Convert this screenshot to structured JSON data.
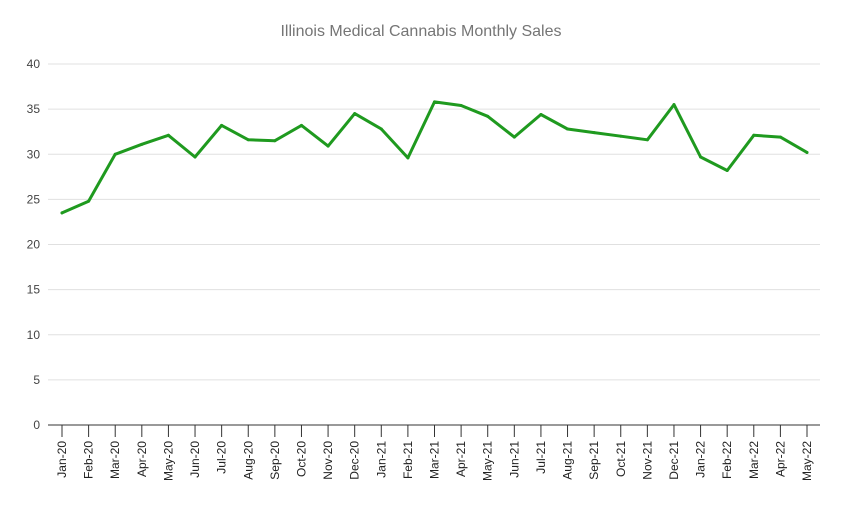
{
  "chart_data": {
    "type": "line",
    "title": "Illinois Medical Cannabis Monthly Sales",
    "xlabel": "",
    "ylabel": "",
    "ylim": [
      0,
      40
    ],
    "yticks": [
      "0",
      "5",
      "10",
      "15",
      "20",
      "25",
      "30",
      "35",
      "40"
    ],
    "grid": true,
    "legend": "none",
    "categories": [
      "Jan-20",
      "Feb-20",
      "Mar-20",
      "Apr-20",
      "May-20",
      "Jun-20",
      "Jul-20",
      "Aug-20",
      "Sep-20",
      "Oct-20",
      "Nov-20",
      "Dec-20",
      "Jan-21",
      "Feb-21",
      "Mar-21",
      "Apr-21",
      "May-21",
      "Jun-21",
      "Jul-21",
      "Aug-21",
      "Sep-21",
      "Oct-21",
      "Nov-21",
      "Dec-21",
      "Jan-22",
      "Feb-22",
      "Mar-22",
      "Apr-22",
      "May-22"
    ],
    "series": [
      {
        "name": "Monthly Sales",
        "color": "#1f9a1f",
        "values": [
          23.5,
          24.8,
          30.0,
          31.1,
          32.1,
          29.7,
          33.2,
          31.6,
          31.5,
          33.2,
          30.9,
          34.5,
          32.8,
          29.6,
          35.8,
          35.4,
          34.2,
          31.9,
          34.4,
          32.8,
          32.4,
          32.0,
          31.6,
          35.5,
          29.7,
          28.2,
          32.1,
          31.9,
          30.2
        ]
      }
    ]
  }
}
